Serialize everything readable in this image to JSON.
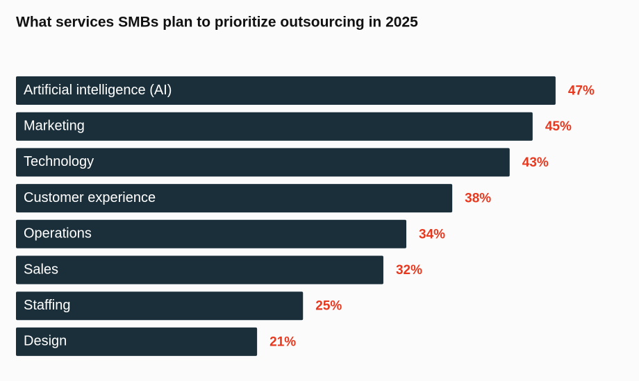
{
  "chart_data": {
    "type": "bar",
    "orientation": "horizontal",
    "title": "What services SMBs plan to prioritize outsourcing in 2025",
    "categories": [
      "Artificial intelligence (AI)",
      "Marketing",
      "Technology",
      "Customer experience",
      "Operations",
      "Sales",
      "Staffing",
      "Design"
    ],
    "values": [
      47,
      45,
      43,
      38,
      34,
      32,
      25,
      21
    ],
    "value_labels": [
      "47%",
      "45%",
      "43%",
      "38%",
      "34%",
      "32%",
      "25%",
      "21%"
    ],
    "color": "#1b2f3a",
    "label_color": "#e8391f"
  }
}
